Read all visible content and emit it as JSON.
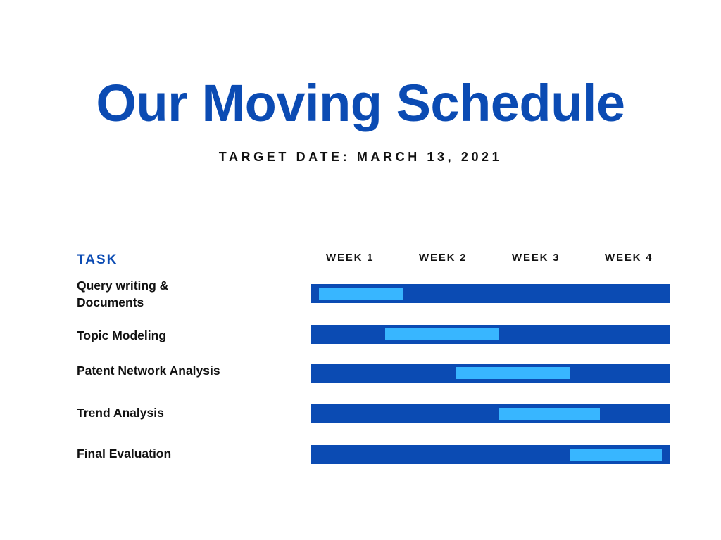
{
  "chart_data": {
    "type": "gantt",
    "title": "Our Moving Schedule",
    "subtitle": "TARGET DATE: MARCH 13, 2021",
    "task_header": "TASK",
    "categories": [
      "WEEK 1",
      "WEEK 2",
      "WEEK 3",
      "WEEK 4"
    ],
    "xlim": [
      0,
      4
    ],
    "x_unit": "weeks",
    "colors": {
      "title": "#0b4bb3",
      "track": "#0b4bb3",
      "span": "#38b6ff",
      "text": "#111111"
    },
    "tasks": [
      {
        "label": "Query writing &\nDocuments",
        "start": 0.05,
        "end": 1.0
      },
      {
        "label": "Topic Modeling",
        "start": 0.8,
        "end": 2.1
      },
      {
        "label": "Patent Network Analysis",
        "start": 1.6,
        "end": 2.9
      },
      {
        "label": "Trend Analysis",
        "start": 2.1,
        "end": 3.25
      },
      {
        "label": "Final Evaluation",
        "start": 2.9,
        "end": 3.95
      }
    ]
  }
}
